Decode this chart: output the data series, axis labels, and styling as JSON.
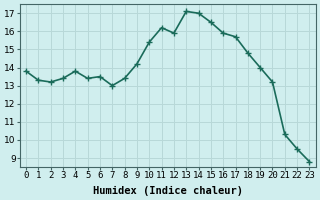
{
  "x": [
    0,
    1,
    2,
    3,
    4,
    5,
    6,
    7,
    8,
    9,
    10,
    11,
    12,
    13,
    14,
    15,
    16,
    17,
    18,
    19,
    20,
    21,
    22,
    23
  ],
  "y": [
    13.8,
    13.3,
    13.2,
    13.4,
    13.8,
    13.4,
    13.5,
    13.0,
    13.4,
    14.2,
    15.4,
    16.2,
    15.9,
    17.1,
    17.0,
    16.5,
    15.9,
    15.7,
    14.8,
    14.0,
    13.2,
    10.3,
    9.5,
    8.8
  ],
  "line_color": "#1a6b5a",
  "bg_color": "#d0eeee",
  "grid_color": "#b8d8d8",
  "xlabel": "Humidex (Indice chaleur)",
  "yticks": [
    9,
    10,
    11,
    12,
    13,
    14,
    15,
    16,
    17
  ],
  "ylim": [
    8.5,
    17.5
  ],
  "xlim": [
    -0.5,
    23.5
  ],
  "marker": "+",
  "marker_size": 5,
  "line_width": 1.2,
  "tick_fontsize": 6.5,
  "xlabel_fontsize": 7.5
}
